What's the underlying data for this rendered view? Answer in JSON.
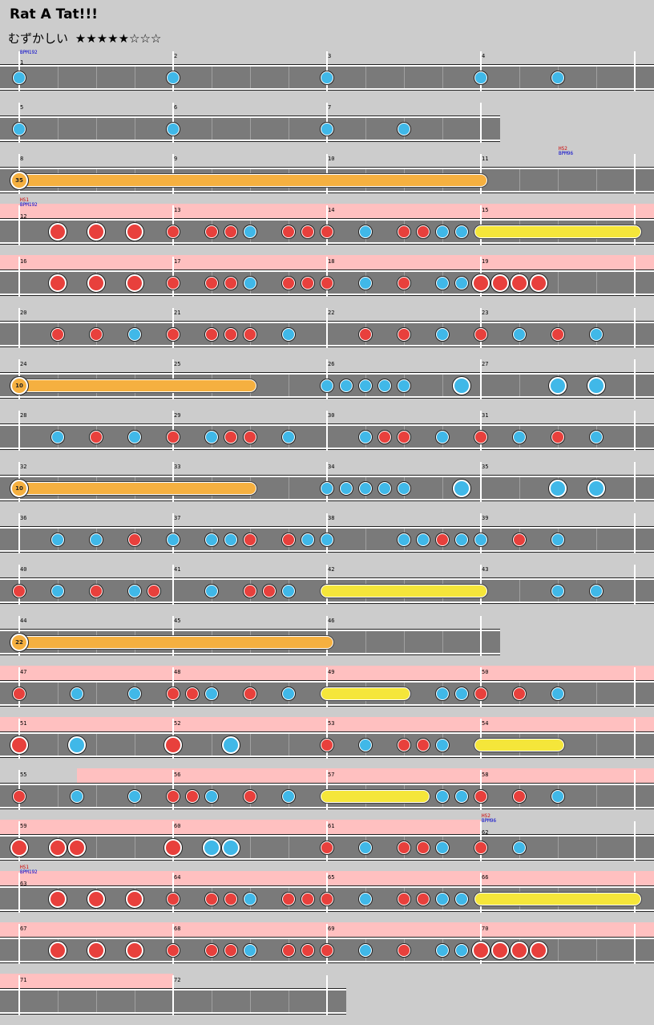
{
  "song": {
    "title": "Rat A Tat!!!",
    "difficulty_label": "むずかしい",
    "difficulty_stars": "★★★★★☆☆☆",
    "level": 5,
    "max_level": 8
  },
  "colors": {
    "don": "#e8403c",
    "ka": "#40b8e8",
    "roll": "#f5e63a",
    "balloon": "#f5b040",
    "gogo": "#ffc0c0",
    "track": "#7a7a7a"
  },
  "rows": [
    {
      "measures": [
        1,
        2,
        3,
        4
      ],
      "gogo": [],
      "bpm": [
        {
          "beat": 0,
          "bpm": "BPM192"
        }
      ],
      "notes": [
        [
          0,
          "k"
        ],
        [
          4,
          "k"
        ],
        [
          8,
          "k"
        ],
        [
          12,
          "k"
        ],
        [
          14,
          "k"
        ]
      ],
      "rolls": []
    },
    {
      "measures": [
        5,
        6,
        7
      ],
      "gogo": [],
      "bpm": [],
      "notes": [
        [
          0,
          "k"
        ],
        [
          4,
          "k"
        ],
        [
          8,
          "k"
        ],
        [
          10,
          "k"
        ]
      ],
      "rolls": []
    },
    {
      "measures": [
        8,
        9,
        10,
        11
      ],
      "gogo": [],
      "bpm": [
        {
          "beat": 14,
          "hs": "HS2",
          "bpm": "BPM96"
        }
      ],
      "notes": [],
      "rolls": [
        {
          "type": "balloon",
          "start": 0,
          "end": 12,
          "count": "35"
        }
      ]
    },
    {
      "measures": [
        12,
        13,
        14,
        15
      ],
      "gogo": [
        [
          0,
          16
        ]
      ],
      "bpm": [
        {
          "beat": 0,
          "hs": "HS1",
          "bpm": "BPM192"
        }
      ],
      "notes": [
        [
          1,
          "D"
        ],
        [
          2,
          "D"
        ],
        [
          3,
          "D"
        ],
        [
          4,
          "d"
        ],
        [
          5,
          "d"
        ],
        [
          5.5,
          "d"
        ],
        [
          6,
          "k"
        ],
        [
          7,
          "d"
        ],
        [
          7.5,
          "d"
        ],
        [
          8,
          "d"
        ],
        [
          9,
          "k"
        ],
        [
          10,
          "d"
        ],
        [
          10.5,
          "d"
        ],
        [
          11,
          "k"
        ],
        [
          11.5,
          "k"
        ]
      ],
      "rolls": [
        {
          "type": "roll",
          "start": 12,
          "end": 16
        }
      ]
    },
    {
      "measures": [
        16,
        17,
        18,
        19
      ],
      "gogo": [
        [
          0,
          16
        ]
      ],
      "bpm": [],
      "notes": [
        [
          1,
          "D"
        ],
        [
          2,
          "D"
        ],
        [
          3,
          "D"
        ],
        [
          4,
          "d"
        ],
        [
          5,
          "d"
        ],
        [
          5.5,
          "d"
        ],
        [
          6,
          "k"
        ],
        [
          7,
          "d"
        ],
        [
          7.5,
          "d"
        ],
        [
          8,
          "d"
        ],
        [
          9,
          "k"
        ],
        [
          10,
          "d"
        ],
        [
          11,
          "k"
        ],
        [
          11.5,
          "k"
        ],
        [
          12,
          "D"
        ],
        [
          12.5,
          "D"
        ],
        [
          13,
          "D"
        ],
        [
          13.5,
          "D"
        ]
      ],
      "rolls": []
    },
    {
      "measures": [
        20,
        21,
        22,
        23
      ],
      "gogo": [],
      "bpm": [],
      "notes": [
        [
          1,
          "d"
        ],
        [
          2,
          "d"
        ],
        [
          3,
          "k"
        ],
        [
          4,
          "d"
        ],
        [
          5,
          "d"
        ],
        [
          5.5,
          "d"
        ],
        [
          6,
          "d"
        ],
        [
          7,
          "k"
        ],
        [
          9,
          "d"
        ],
        [
          10,
          "d"
        ],
        [
          11,
          "k"
        ],
        [
          12,
          "d"
        ],
        [
          13,
          "k"
        ],
        [
          14,
          "d"
        ],
        [
          15,
          "k"
        ]
      ],
      "rolls": []
    },
    {
      "measures": [
        24,
        25,
        26,
        27
      ],
      "gogo": [],
      "bpm": [],
      "notes": [
        [
          8,
          "k"
        ],
        [
          8.5,
          "k"
        ],
        [
          9,
          "k"
        ],
        [
          9.5,
          "k"
        ],
        [
          10,
          "k"
        ],
        [
          11.5,
          "K"
        ],
        [
          14,
          "K"
        ],
        [
          15,
          "K"
        ]
      ],
      "rolls": [
        {
          "type": "balloon",
          "start": 0,
          "end": 6,
          "count": "10"
        }
      ]
    },
    {
      "measures": [
        28,
        29,
        30,
        31
      ],
      "gogo": [],
      "bpm": [],
      "notes": [
        [
          1,
          "k"
        ],
        [
          2,
          "d"
        ],
        [
          3,
          "k"
        ],
        [
          4,
          "d"
        ],
        [
          5,
          "k"
        ],
        [
          5.5,
          "d"
        ],
        [
          6,
          "d"
        ],
        [
          7,
          "k"
        ],
        [
          9,
          "k"
        ],
        [
          9.5,
          "d"
        ],
        [
          10,
          "d"
        ],
        [
          11,
          "k"
        ],
        [
          12,
          "d"
        ],
        [
          13,
          "k"
        ],
        [
          14,
          "d"
        ],
        [
          15,
          "k"
        ]
      ],
      "rolls": []
    },
    {
      "measures": [
        32,
        33,
        34,
        35
      ],
      "gogo": [],
      "bpm": [],
      "notes": [
        [
          8,
          "k"
        ],
        [
          8.5,
          "k"
        ],
        [
          9,
          "k"
        ],
        [
          9.5,
          "k"
        ],
        [
          10,
          "k"
        ],
        [
          11.5,
          "K"
        ],
        [
          14,
          "K"
        ],
        [
          15,
          "K"
        ]
      ],
      "rolls": [
        {
          "type": "balloon",
          "start": 0,
          "end": 6,
          "count": "10"
        }
      ]
    },
    {
      "measures": [
        36,
        37,
        38,
        39
      ],
      "gogo": [],
      "bpm": [],
      "notes": [
        [
          1,
          "k"
        ],
        [
          2,
          "k"
        ],
        [
          3,
          "d"
        ],
        [
          4,
          "k"
        ],
        [
          5,
          "k"
        ],
        [
          5.5,
          "k"
        ],
        [
          6,
          "d"
        ],
        [
          7,
          "d"
        ],
        [
          7.5,
          "k"
        ],
        [
          8,
          "k"
        ],
        [
          10,
          "k"
        ],
        [
          10.5,
          "k"
        ],
        [
          11,
          "d"
        ],
        [
          11.5,
          "k"
        ],
        [
          12,
          "k"
        ],
        [
          13,
          "d"
        ],
        [
          14,
          "k"
        ]
      ],
      "rolls": []
    },
    {
      "measures": [
        40,
        41,
        42,
        43
      ],
      "gogo": [],
      "bpm": [],
      "notes": [
        [
          0,
          "d"
        ],
        [
          1,
          "k"
        ],
        [
          2,
          "d"
        ],
        [
          3,
          "k"
        ],
        [
          3.5,
          "d"
        ],
        [
          5,
          "k"
        ],
        [
          6,
          "d"
        ],
        [
          6.5,
          "d"
        ],
        [
          7,
          "k"
        ],
        [
          14,
          "k"
        ],
        [
          15,
          "k"
        ]
      ],
      "rolls": [
        {
          "type": "roll",
          "start": 8,
          "end": 12
        }
      ]
    },
    {
      "measures": [
        44,
        45,
        46
      ],
      "gogo": [],
      "bpm": [],
      "notes": [],
      "rolls": [
        {
          "type": "balloon",
          "start": 0,
          "end": 8,
          "count": "22"
        }
      ]
    },
    {
      "measures": [
        47,
        48,
        49,
        50
      ],
      "gogo": [
        [
          0,
          16
        ]
      ],
      "bpm": [],
      "notes": [
        [
          0,
          "d"
        ],
        [
          1.5,
          "k"
        ],
        [
          3,
          "k"
        ],
        [
          4,
          "d"
        ],
        [
          4.5,
          "d"
        ],
        [
          5,
          "k"
        ],
        [
          6,
          "d"
        ],
        [
          7,
          "k"
        ],
        [
          11,
          "k"
        ],
        [
          11.5,
          "k"
        ],
        [
          12,
          "d"
        ],
        [
          13,
          "d"
        ],
        [
          14,
          "k"
        ]
      ],
      "rolls": [
        {
          "type": "roll",
          "start": 8,
          "end": 10
        }
      ]
    },
    {
      "measures": [
        51,
        52,
        53,
        54
      ],
      "gogo": [
        [
          0,
          16
        ]
      ],
      "bpm": [],
      "notes": [
        [
          0,
          "D"
        ],
        [
          1.5,
          "K"
        ],
        [
          4,
          "D"
        ],
        [
          5.5,
          "K"
        ],
        [
          8,
          "d"
        ],
        [
          9,
          "k"
        ],
        [
          10,
          "d"
        ],
        [
          10.5,
          "d"
        ],
        [
          11,
          "k"
        ]
      ],
      "rolls": [
        {
          "type": "roll",
          "start": 12,
          "end": 14
        }
      ]
    },
    {
      "measures": [
        55,
        56,
        57,
        58
      ],
      "gogo": [
        [
          1.5,
          16
        ]
      ],
      "bpm": [],
      "notes": [
        [
          0,
          "d"
        ],
        [
          1.5,
          "k"
        ],
        [
          3,
          "k"
        ],
        [
          4,
          "d"
        ],
        [
          4.5,
          "d"
        ],
        [
          5,
          "k"
        ],
        [
          6,
          "d"
        ],
        [
          7,
          "k"
        ],
        [
          11,
          "k"
        ],
        [
          11.5,
          "k"
        ],
        [
          12,
          "d"
        ],
        [
          13,
          "d"
        ],
        [
          14,
          "k"
        ]
      ],
      "rolls": [
        {
          "type": "roll",
          "start": 8,
          "end": 10.5
        }
      ]
    },
    {
      "measures": [
        59,
        60,
        61,
        62
      ],
      "gogo": [
        [
          0,
          12
        ]
      ],
      "bpm": [
        {
          "beat": 12,
          "hs": "HS2",
          "bpm": "BPM96"
        }
      ],
      "notes": [
        [
          0,
          "D"
        ],
        [
          1,
          "D"
        ],
        [
          1.5,
          "D"
        ],
        [
          4,
          "D"
        ],
        [
          5,
          "K"
        ],
        [
          5.5,
          "K"
        ],
        [
          8,
          "d"
        ],
        [
          9,
          "k"
        ],
        [
          10,
          "d"
        ],
        [
          10.5,
          "d"
        ],
        [
          11,
          "k"
        ],
        [
          12,
          "d"
        ],
        [
          13,
          "k"
        ]
      ],
      "rolls": []
    },
    {
      "measures": [
        63,
        64,
        65,
        66
      ],
      "gogo": [
        [
          0,
          16
        ]
      ],
      "bpm": [
        {
          "beat": 0,
          "hs": "HS1",
          "bpm": "BPM192"
        }
      ],
      "notes": [
        [
          1,
          "D"
        ],
        [
          2,
          "D"
        ],
        [
          3,
          "D"
        ],
        [
          4,
          "d"
        ],
        [
          5,
          "d"
        ],
        [
          5.5,
          "d"
        ],
        [
          6,
          "k"
        ],
        [
          7,
          "d"
        ],
        [
          7.5,
          "d"
        ],
        [
          8,
          "d"
        ],
        [
          9,
          "k"
        ],
        [
          10,
          "d"
        ],
        [
          10.5,
          "d"
        ],
        [
          11,
          "k"
        ],
        [
          11.5,
          "k"
        ]
      ],
      "rolls": [
        {
          "type": "roll",
          "start": 12,
          "end": 16
        }
      ]
    },
    {
      "measures": [
        67,
        68,
        69,
        70
      ],
      "gogo": [
        [
          0,
          16
        ]
      ],
      "bpm": [],
      "notes": [
        [
          1,
          "D"
        ],
        [
          2,
          "D"
        ],
        [
          3,
          "D"
        ],
        [
          4,
          "d"
        ],
        [
          5,
          "d"
        ],
        [
          5.5,
          "d"
        ],
        [
          6,
          "k"
        ],
        [
          7,
          "d"
        ],
        [
          7.5,
          "d"
        ],
        [
          8,
          "d"
        ],
        [
          9,
          "k"
        ],
        [
          10,
          "d"
        ],
        [
          11,
          "k"
        ],
        [
          11.5,
          "k"
        ],
        [
          12,
          "D"
        ],
        [
          12.5,
          "D"
        ],
        [
          13,
          "D"
        ],
        [
          13.5,
          "D"
        ]
      ],
      "rolls": []
    },
    {
      "measures": [
        71,
        72
      ],
      "gogo": [
        [
          0,
          4
        ]
      ],
      "bpm": [],
      "notes": [],
      "rolls": []
    }
  ]
}
